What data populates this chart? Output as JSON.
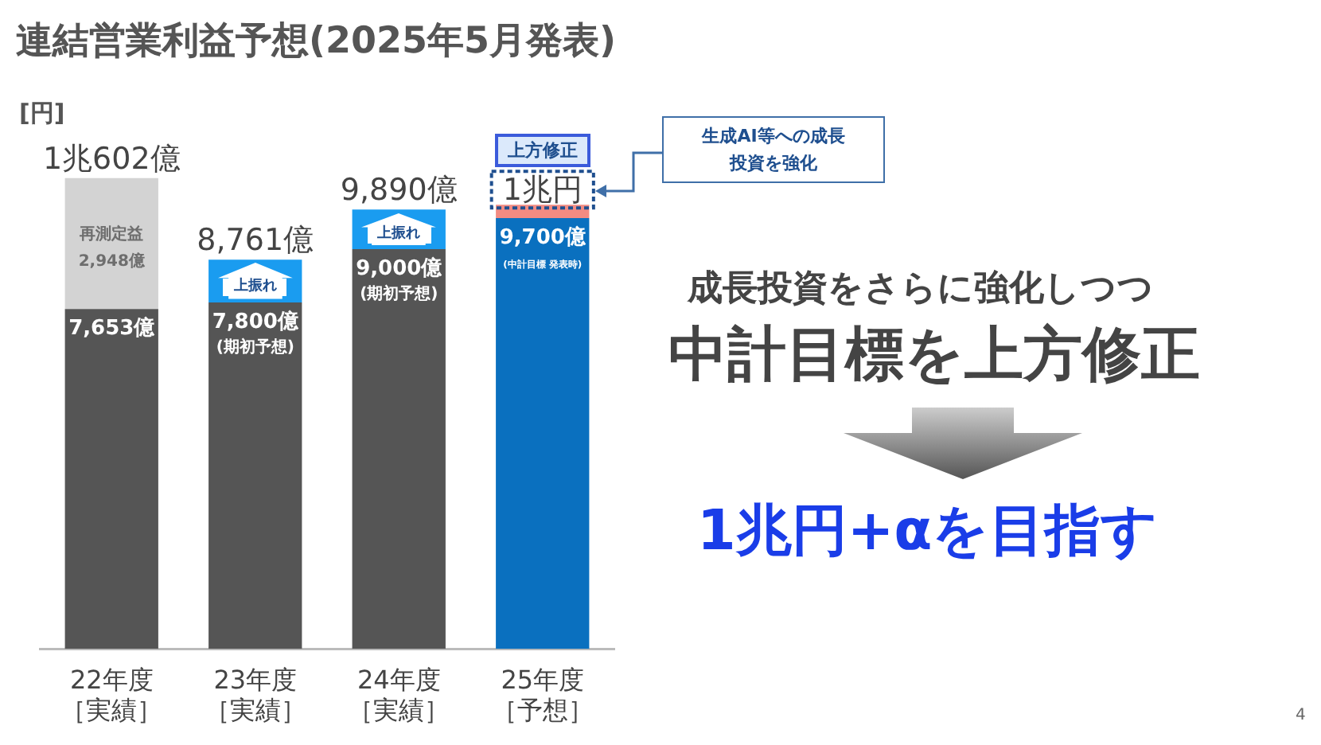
{
  "chart_data": {
    "type": "bar",
    "title": "連結営業利益予想(2025年5月発表)",
    "ylabel": "[円]",
    "stacked": true,
    "categories": [
      "22年度［実績］",
      "23年度［実績］",
      "24年度［実績］",
      "25年度［予想］"
    ],
    "series": [
      {
        "colors": [
          "#555555",
          "#555555",
          "#555555",
          "#0a70bf"
        ],
        "values": [
          7653,
          7800,
          9000,
          9700
        ],
        "value_labels": [
          "7,653億",
          "7,800億\n(期初予想)",
          "9,000億\n(期初予想)",
          "9,700億\n(中計目標 発表時)"
        ]
      },
      {
        "colors": [
          "#d3d3d3",
          "#1a9cf0",
          "#1a9cf0",
          "#f28b82"
        ],
        "values": [
          2948,
          961,
          890,
          300
        ],
        "value_labels": [
          "再測定益\n2,948億",
          "上振れ",
          "上振れ",
          null
        ]
      }
    ],
    "totals": [
      "1兆602億",
      "8,761億",
      "9,890億",
      null
    ],
    "grid": false,
    "legend": false,
    "annotations": [
      "上方修正",
      "生成AI等への成長投資を強化",
      "成長投資をさらに強化しつつ",
      "中計目標を上方修正",
      "1兆円+αを目指す",
      "4",
      {
        "text": "1兆円",
        "x": "25年度［予想］",
        "y": 10000
      }
    ]
  }
}
